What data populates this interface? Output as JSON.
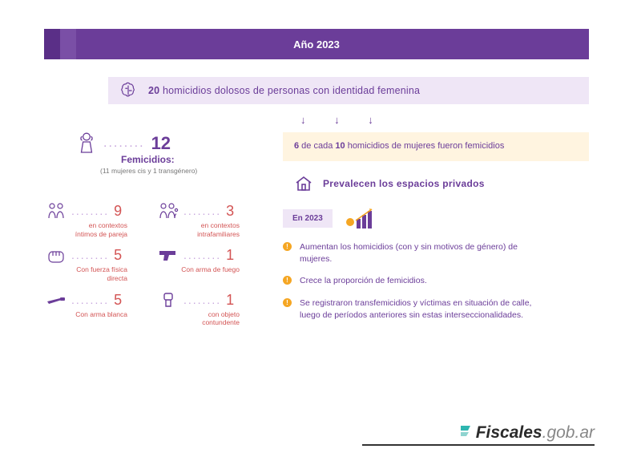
{
  "colors": {
    "purple": "#6b3d99",
    "purple_dark": "#5a2f87",
    "purple_mid": "#7a4fa6",
    "lavender": "#efe6f6",
    "dot": "#c7a6dd",
    "red": "#d35454",
    "cream": "#fff4e0",
    "orange": "#f5a623",
    "teal": "#2eb6b0",
    "text": "#555555"
  },
  "title": "Año 2023",
  "subtitle_num": "20",
  "subtitle_rest": " homicidios dolosos de personas con identidad femenina",
  "arrows_glyph": "↓   ↓   ↓",
  "femicidios": {
    "number": "12",
    "label": "Femicidios:",
    "sub": "(11 mujeres cis y 1 transgénero)",
    "dots": "........"
  },
  "stats": [
    {
      "icon": "couple",
      "num": "9",
      "dots": "........",
      "label": "en contextos\níntimos de pareja"
    },
    {
      "icon": "family",
      "num": "3",
      "dots": "........",
      "label": "en contextos\nintrafamiliares"
    },
    {
      "icon": "fist",
      "num": "5",
      "dots": "........",
      "label": "Con fuerza física\ndirecta"
    },
    {
      "icon": "gun",
      "num": "1",
      "dots": "........",
      "label": "Con arma de fuego"
    },
    {
      "icon": "knife",
      "num": "5",
      "dots": "........",
      "label": "Con arma blanca"
    },
    {
      "icon": "blunt",
      "num": "1",
      "dots": "........",
      "label": "con objeto\ncontundente"
    }
  ],
  "ratio_a": "6",
  "ratio_b": "10",
  "ratio_text_a": " de cada ",
  "ratio_text_b": " homicidios de mujeres fueron femicidios",
  "private_spaces": "Prevalecen  los espacios privados",
  "tag": "En 2023",
  "bullets": [
    "Aumentan los homicidios (con y sin motivos de género) de mujeres.",
    "Crece la proporción de femicidios.",
    "Se registraron transfemicidios y víctimas en situación de calle, luego de períodos anteriores sin estas interseccionalidades."
  ],
  "logo_bold": "Fiscales",
  "logo_thin": ".gob.ar"
}
